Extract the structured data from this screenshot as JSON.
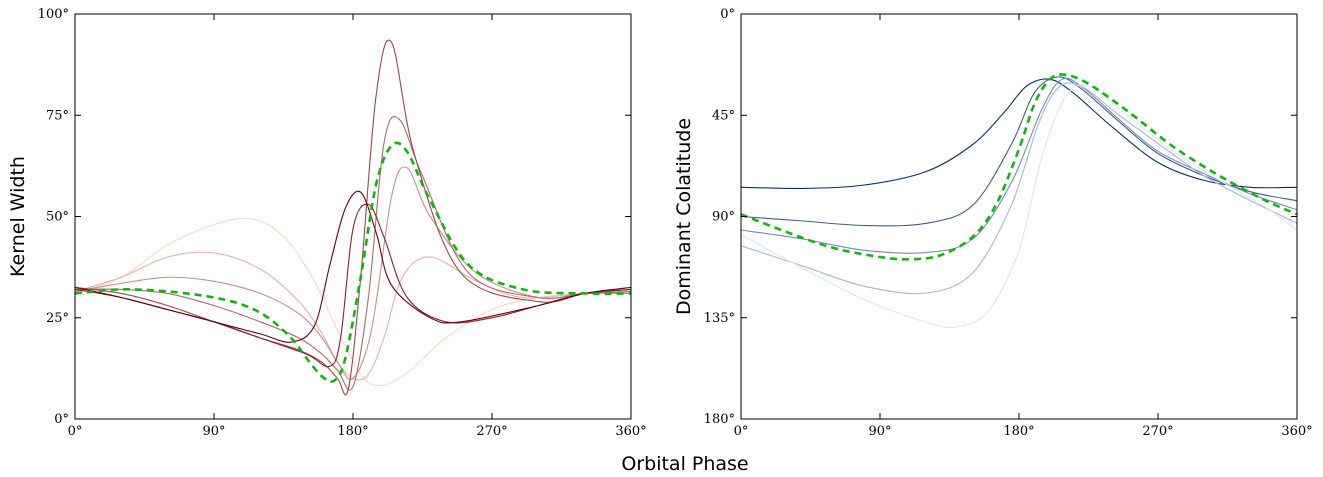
{
  "shared_xlabel": "Orbital Phase",
  "chart_data": [
    {
      "type": "line",
      "ylabel": "Kernel Width",
      "xlim": [
        0,
        360
      ],
      "ylim": [
        0,
        100
      ],
      "y_inverted": false,
      "x_ticks": [
        "0°",
        "90°",
        "180°",
        "270°",
        "360°"
      ],
      "y_ticks": [
        "0°",
        "25°",
        "50°",
        "75°",
        "100°"
      ],
      "grid": false,
      "colormap": "reds",
      "color_light": "#fcd5c2",
      "color_dark": "#67000d",
      "mean_color": "#11b511",
      "series_note": "21 curves shading light to dark red plus a dashed green mean curve",
      "series": [
        {
          "x": [
            0,
            30,
            60,
            90,
            110,
            125,
            140,
            155,
            165,
            175,
            190,
            210,
            240,
            270,
            300,
            330,
            360
          ],
          "y": [
            31,
            35,
            43,
            48,
            49.5,
            48,
            43,
            34,
            26,
            18,
            9,
            10,
            20,
            27,
            30,
            31,
            31
          ]
        },
        {
          "x": [
            0,
            30,
            60,
            90,
            120,
            145,
            160,
            170,
            180,
            190,
            200,
            212,
            230,
            260,
            290,
            330,
            360
          ],
          "y": [
            31.5,
            35,
            40,
            41,
            37,
            29,
            21,
            14,
            10,
            11,
            20,
            35,
            40,
            34,
            30,
            31,
            31
          ]
        },
        {
          "x": [
            0,
            30,
            60,
            90,
            120,
            145,
            160,
            170,
            180,
            192,
            205,
            215,
            230,
            260,
            300,
            330,
            360
          ],
          "y": [
            31.5,
            33.5,
            35,
            34,
            31,
            26,
            20,
            14,
            10,
            22,
            55,
            62,
            50,
            36,
            30,
            31,
            31
          ]
        },
        {
          "x": [
            0,
            30,
            60,
            90,
            120,
            145,
            160,
            170,
            180,
            190,
            200,
            210,
            225,
            255,
            300,
            330,
            360
          ],
          "y": [
            32,
            32,
            31,
            28,
            24,
            20,
            16,
            12,
            8,
            30,
            68,
            74,
            60,
            36,
            30,
            31,
            31.5
          ]
        },
        {
          "x": [
            0,
            30,
            60,
            90,
            120,
            145,
            160,
            170,
            177,
            185,
            195,
            205,
            220,
            250,
            300,
            330,
            360
          ],
          "y": [
            32.5,
            31,
            28,
            24,
            20,
            17,
            14,
            10,
            7.5,
            35,
            80,
            93,
            65,
            36,
            29,
            31,
            32
          ]
        },
        {
          "x": [
            0,
            30,
            60,
            90,
            120,
            150,
            165,
            172,
            180,
            190,
            200,
            215,
            240,
            270,
            300,
            330,
            360
          ],
          "y": [
            32,
            30,
            27,
            24,
            20,
            16,
            13,
            20,
            47,
            53,
            45,
            30,
            24,
            25,
            28,
            31,
            32
          ]
        },
        {
          "x": [
            0,
            30,
            60,
            90,
            120,
            140,
            155,
            165,
            175,
            185,
            195,
            205,
            230,
            250,
            300,
            330,
            360
          ],
          "y": [
            32.5,
            30,
            27,
            24,
            21,
            19,
            23,
            38,
            52,
            56,
            46,
            33,
            25,
            24,
            28,
            31,
            32.5
          ]
        }
      ],
      "mean": {
        "x": [
          0,
          30,
          60,
          90,
          110,
          125,
          140,
          150,
          160,
          168,
          175,
          185,
          195,
          205,
          215,
          230,
          255,
          290,
          330,
          360
        ],
        "y": [
          31,
          32,
          31.5,
          30,
          28,
          25,
          20,
          15,
          10.5,
          9.5,
          15,
          35,
          58,
          67.5,
          66,
          54,
          38,
          32,
          31,
          31
        ]
      }
    },
    {
      "type": "line",
      "ylabel": "Dominant Colatitude",
      "xlim": [
        0,
        360
      ],
      "ylim": [
        180,
        0
      ],
      "y_inverted": true,
      "x_ticks": [
        "0°",
        "90°",
        "180°",
        "270°",
        "360°"
      ],
      "y_ticks": [
        "0°",
        "45°",
        "90°",
        "135°",
        "180°"
      ],
      "grid": false,
      "colormap": "blues",
      "color_light": "#d8e7f5",
      "color_dark": "#08306b",
      "mean_color": "#11b511",
      "series_note": "21 curves shading dark to light blue plus a dashed green mean curve",
      "series": [
        {
          "x": [
            0,
            40,
            80,
            120,
            150,
            170,
            185,
            200,
            215,
            240,
            270,
            300,
            330,
            360
          ],
          "y": [
            77,
            77.5,
            76,
            70,
            58,
            44,
            32,
            29,
            35,
            50,
            66,
            74,
            77,
            77
          ]
        },
        {
          "x": [
            0,
            40,
            80,
            120,
            150,
            175,
            190,
            205,
            220,
            245,
            270,
            300,
            330,
            360
          ],
          "y": [
            90,
            92,
            94,
            93,
            85,
            58,
            35,
            28,
            33,
            48,
            62,
            72,
            79,
            83
          ]
        },
        {
          "x": [
            0,
            40,
            80,
            120,
            150,
            175,
            195,
            208,
            222,
            245,
            270,
            300,
            330,
            360
          ],
          "y": [
            96,
            100,
            105,
            106,
            100,
            75,
            42,
            29,
            33,
            47,
            61,
            71,
            80,
            87
          ]
        },
        {
          "x": [
            0,
            40,
            80,
            120,
            150,
            175,
            192,
            205,
            220,
            245,
            275,
            300,
            330,
            360
          ],
          "y": [
            103,
            112,
            121,
            124,
            115,
            85,
            50,
            33,
            32,
            45,
            60,
            72,
            83,
            93
          ]
        },
        {
          "x": [
            0,
            40,
            80,
            120,
            140,
            160,
            180,
            195,
            210,
            225,
            250,
            280,
            310,
            340,
            360
          ],
          "y": [
            98,
            113,
            127,
            137,
            139,
            132,
            105,
            63,
            37,
            32,
            45,
            61,
            74,
            86,
            96
          ]
        }
      ],
      "mean": {
        "x": [
          0,
          30,
          60,
          90,
          110,
          130,
          150,
          165,
          180,
          190,
          200,
          210,
          225,
          250,
          280,
          310,
          340,
          360
        ],
        "y": [
          89,
          97,
          104,
          108,
          109,
          107,
          99,
          85,
          60,
          40,
          29,
          27,
          31,
          43,
          59,
          72,
          83,
          89
        ]
      }
    }
  ]
}
